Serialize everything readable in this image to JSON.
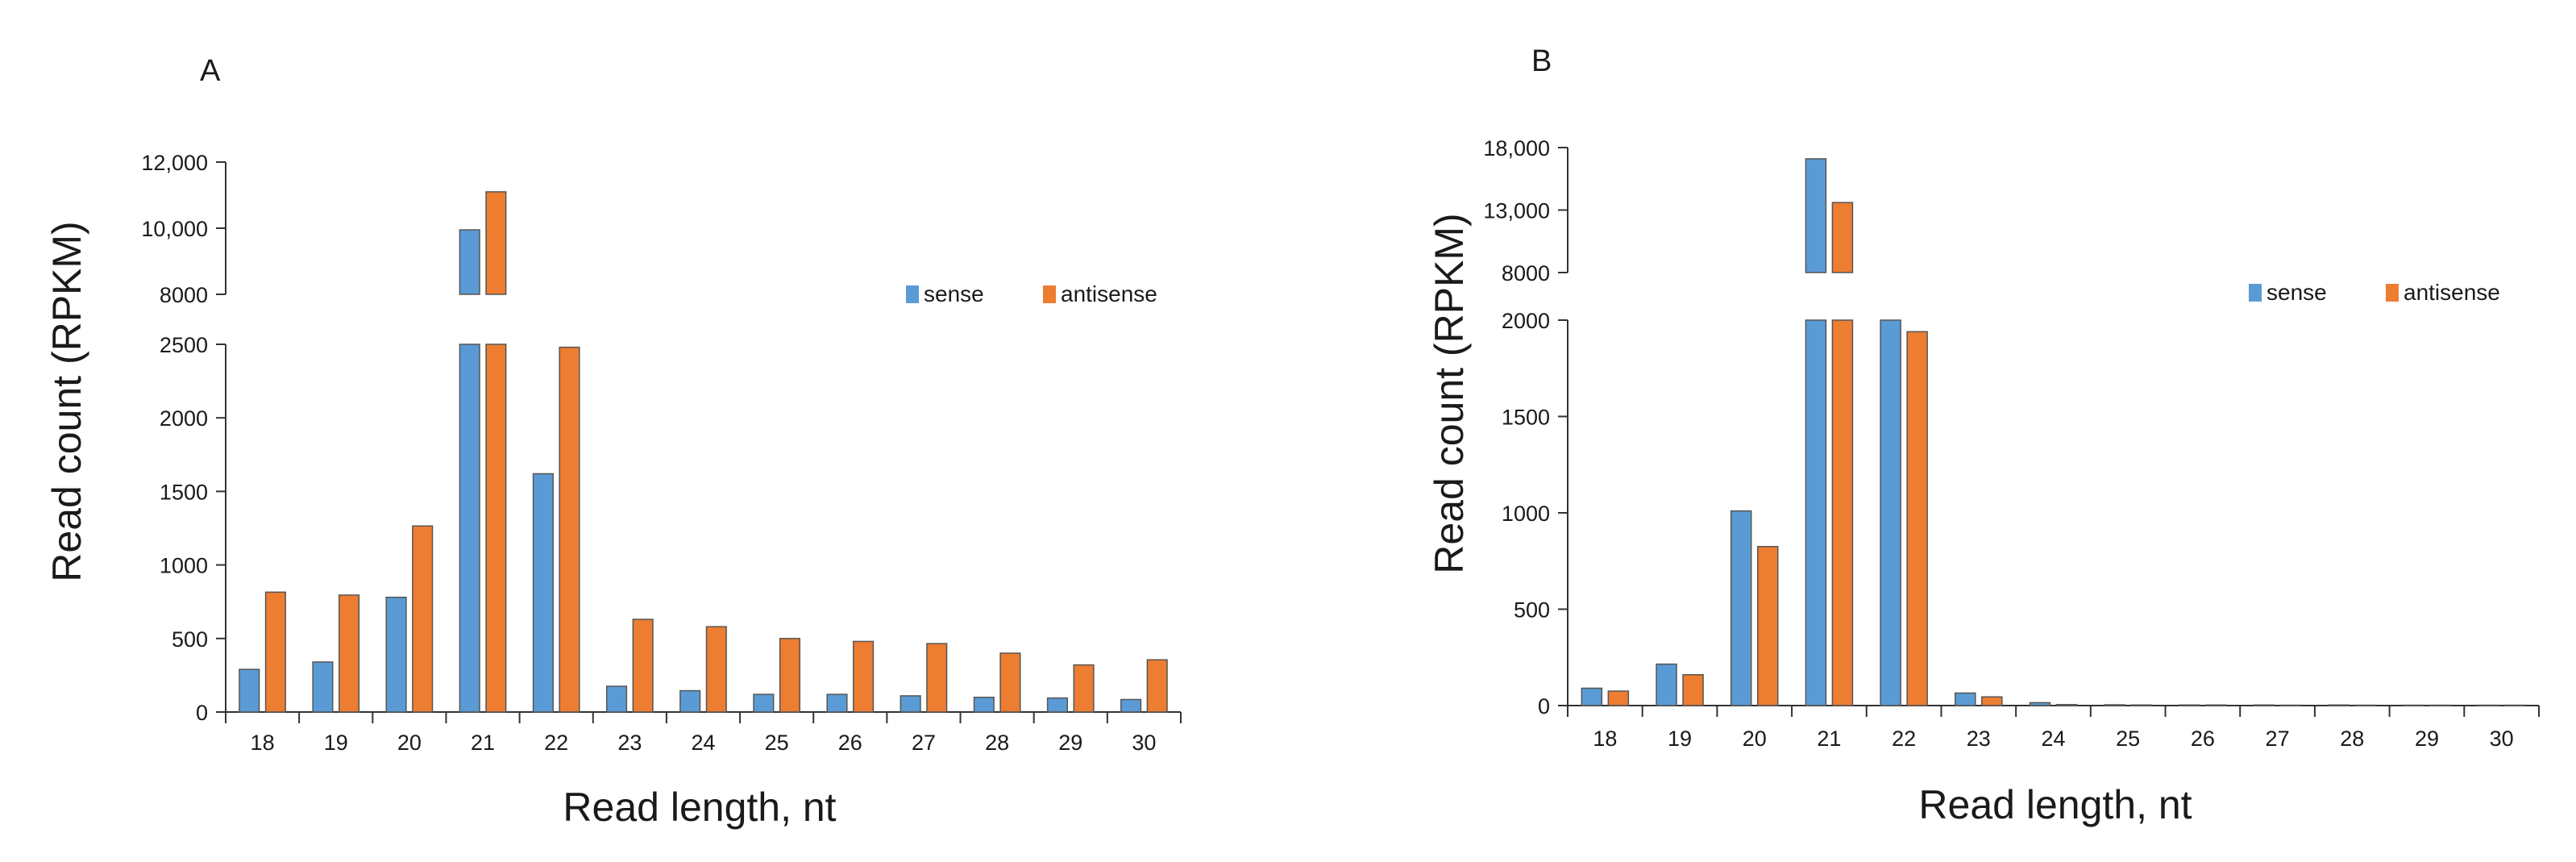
{
  "chart_data": [
    {
      "panel_label": "A",
      "type": "bar",
      "categories": [
        "18",
        "19",
        "20",
        "21",
        "22",
        "23",
        "24",
        "25",
        "26",
        "27",
        "28",
        "29",
        "30"
      ],
      "series": [
        {
          "name": "sense",
          "color": "#5B9BD5",
          "values": [
            290,
            340,
            780,
            9950,
            1620,
            175,
            145,
            120,
            120,
            110,
            100,
            95,
            85
          ]
        },
        {
          "name": "antisense",
          "color": "#ED7D31",
          "values": [
            815,
            795,
            1265,
            11100,
            2480,
            630,
            580,
            500,
            480,
            465,
            400,
            320,
            355
          ]
        }
      ],
      "xlabel": "Read length, nt",
      "ylabel": "Read count (RPKM)",
      "lower_ylim": [
        0,
        2500
      ],
      "lower_ticks": [
        0,
        500,
        1000,
        1500,
        2000,
        2500
      ],
      "lower_tick_labels": [
        "0",
        "500",
        "1000",
        "1500",
        "2000",
        "2500"
      ],
      "upper_ylim": [
        8000,
        12000
      ],
      "upper_ticks": [
        8000,
        10000,
        12000
      ],
      "upper_tick_labels": [
        "8000",
        "10,000",
        "12,000"
      ],
      "legend": {
        "position": "top-right"
      }
    },
    {
      "panel_label": "B",
      "type": "bar",
      "categories": [
        "18",
        "19",
        "20",
        "21",
        "22",
        "23",
        "24",
        "25",
        "26",
        "27",
        "28",
        "29",
        "30"
      ],
      "series": [
        {
          "name": "sense",
          "color": "#5B9BD5",
          "values": [
            90,
            215,
            1010,
            17100,
            2000,
            65,
            15,
            4,
            3,
            3,
            3,
            2,
            2
          ]
        },
        {
          "name": "antisense",
          "color": "#ED7D31",
          "values": [
            75,
            160,
            825,
            13600,
            1940,
            45,
            5,
            3,
            3,
            2,
            2,
            2,
            2
          ]
        }
      ],
      "xlabel": "Read length, nt",
      "ylabel": "Read count (RPKM)",
      "lower_ylim": [
        0,
        2000
      ],
      "lower_ticks": [
        0,
        500,
        1000,
        1500,
        2000
      ],
      "lower_tick_labels": [
        "0",
        "500",
        "1000",
        "1500",
        "2000"
      ],
      "upper_ylim": [
        8000,
        18000
      ],
      "upper_ticks": [
        8000,
        13000,
        18000
      ],
      "upper_tick_labels": [
        "8000",
        "13,000",
        "18,000"
      ],
      "legend": {
        "position": "top-right"
      }
    }
  ]
}
